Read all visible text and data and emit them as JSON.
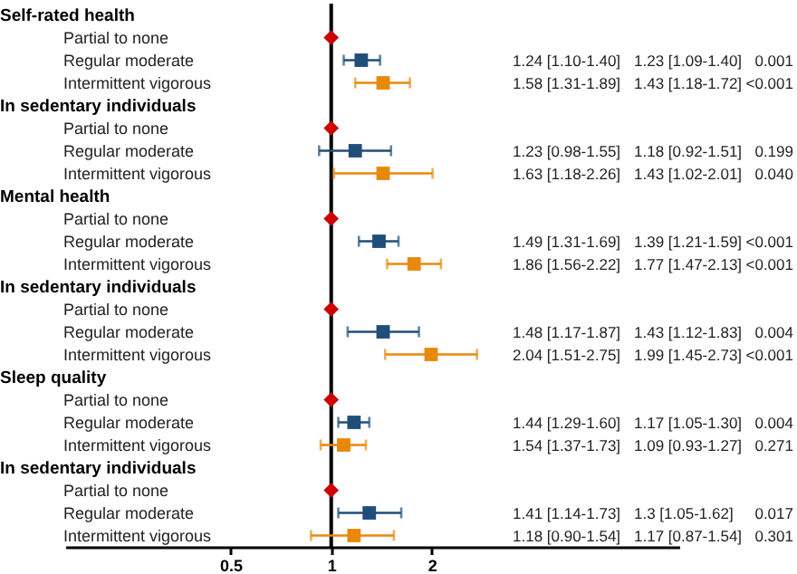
{
  "chart_data": {
    "type": "scatter",
    "orientation": "horizontal",
    "categories": [
      "Self-rated health",
      "Partial to none",
      "Regular moderate",
      "Intermittent vigorous",
      "In sedentary individuals",
      "Partial to none",
      "Regular moderate",
      "Intermittent vigorous",
      "Mental health",
      "Partial to none",
      "Regular moderate",
      "Intermittent vigorous",
      "In sedentary individuals",
      "Partial to none",
      "Regular moderate",
      "Intermittent vigorous",
      "Sleep quality",
      "Partial to none",
      "Regular moderate",
      "Intermittent vigorous",
      "In sedentary individuals",
      "Partial to none",
      "Regular moderate",
      "Intermittent vigorous"
    ],
    "series": [
      {
        "color": "#cc0000",
        "marker": "diamond",
        "values": [
          null,
          1,
          null,
          null,
          null,
          1,
          null,
          null,
          null,
          1,
          null,
          null,
          null,
          1,
          null,
          null,
          null,
          1,
          null,
          null,
          null,
          1,
          null,
          null
        ]
      },
      {
        "color": "#1f4e79",
        "marker": "square",
        "values": [
          null,
          null,
          1.23,
          null,
          null,
          null,
          1.18,
          null,
          null,
          null,
          1.39,
          null,
          null,
          null,
          1.43,
          null,
          null,
          null,
          1.17,
          null,
          null,
          null,
          1.3,
          null
        ],
        "errors": [
          null,
          null,
          [
            1.09,
            1.4
          ],
          null,
          null,
          null,
          [
            0.92,
            1.51
          ],
          null,
          null,
          null,
          [
            1.21,
            1.59
          ],
          null,
          null,
          null,
          [
            1.12,
            1.83
          ],
          null,
          null,
          null,
          [
            1.05,
            1.3
          ],
          null,
          null,
          null,
          [
            1.05,
            1.62
          ],
          null
        ]
      },
      {
        "color": "#e8890c",
        "marker": "square",
        "values": [
          null,
          null,
          null,
          1.43,
          null,
          null,
          null,
          1.43,
          null,
          null,
          null,
          1.77,
          null,
          null,
          null,
          1.99,
          null,
          null,
          null,
          1.09,
          null,
          null,
          null,
          1.17
        ],
        "errors": [
          null,
          null,
          null,
          [
            1.18,
            1.72
          ],
          null,
          null,
          null,
          [
            1.02,
            2.01
          ],
          null,
          null,
          null,
          [
            1.47,
            2.13
          ],
          null,
          null,
          null,
          [
            1.45,
            2.73
          ],
          null,
          null,
          null,
          [
            0.93,
            1.27
          ],
          null,
          null,
          null,
          [
            0.87,
            1.54
          ]
        ]
      }
    ],
    "annotations": [
      "1.24 [1.10-1.40]",
      "1.23 [1.09-1.40]",
      "0.001",
      "1.58 [1.31-1.89]",
      "1.43 [1.18-1.72]",
      "<0.001",
      "1.23 [0.98-1.55]",
      "1.18 [0.92-1.51]",
      "0.199",
      "1.63 [1.18-2.26]",
      "1.43 [1.02-2.01]",
      "0.040",
      "1.49 [1.31-1.69]",
      "1.39 [1.21-1.59]",
      "<0.001",
      "1.86 [1.56-2.22]",
      "1.77 [1.47-2.13]",
      "<0.001",
      "1.48 [1.17-1.87]",
      "1.43 [1.12-1.83]",
      "0.004",
      "2.04 [1.51-2.75]",
      "1.99 [1.45-2.73]",
      "<0.001",
      "1.44 [1.29-1.60]",
      "1.17 [1.05-1.30]",
      "0.004",
      "1.54 [1.37-1.73]",
      "1.09 [0.93-1.27]",
      "0.271",
      "1.41 [1.14-1.73]",
      "1.3 [1.05-1.62]",
      "0.017",
      "1.18 [0.90-1.54]",
      "1.17 [0.87-1.54]",
      "0.301"
    ],
    "log": "x",
    "xlim": [
      0.16,
      11
    ],
    "xticks": [
      0.5,
      1,
      2
    ],
    "ref_lines": [
      {
        "axis": "x",
        "value": 1,
        "color": "#000000"
      }
    ]
  }
}
